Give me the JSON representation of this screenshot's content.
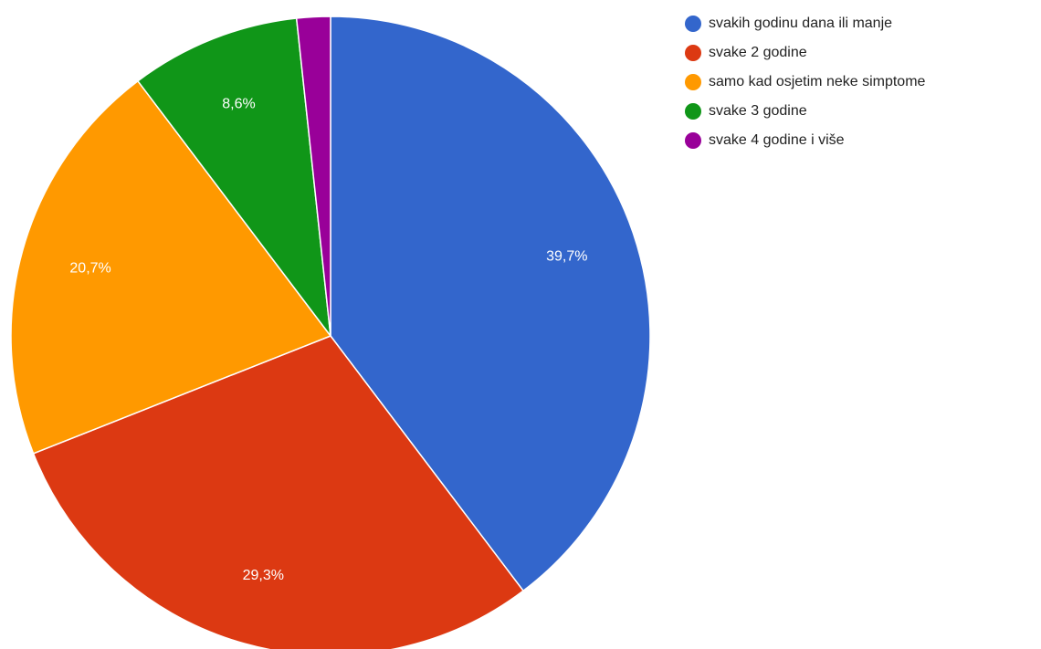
{
  "chart_data": {
    "type": "pie",
    "title": "",
    "legend_position": "right",
    "slices": [
      {
        "label": "svakih godinu dana ili manje",
        "value": 39.7,
        "display": "39,7%",
        "color": "#3366cc"
      },
      {
        "label": "svake 2 godine",
        "value": 29.3,
        "display": "29,3%",
        "color": "#dc3912"
      },
      {
        "label": "samo kad osjetim neke simptome",
        "value": 20.7,
        "display": "20,7%",
        "color": "#ff9900"
      },
      {
        "label": "svake 3 godine",
        "value": 8.6,
        "display": "8,6%",
        "color": "#109618"
      },
      {
        "label": "svake 4 godine i više",
        "value": 1.7,
        "display": "",
        "color": "#990099"
      }
    ]
  }
}
